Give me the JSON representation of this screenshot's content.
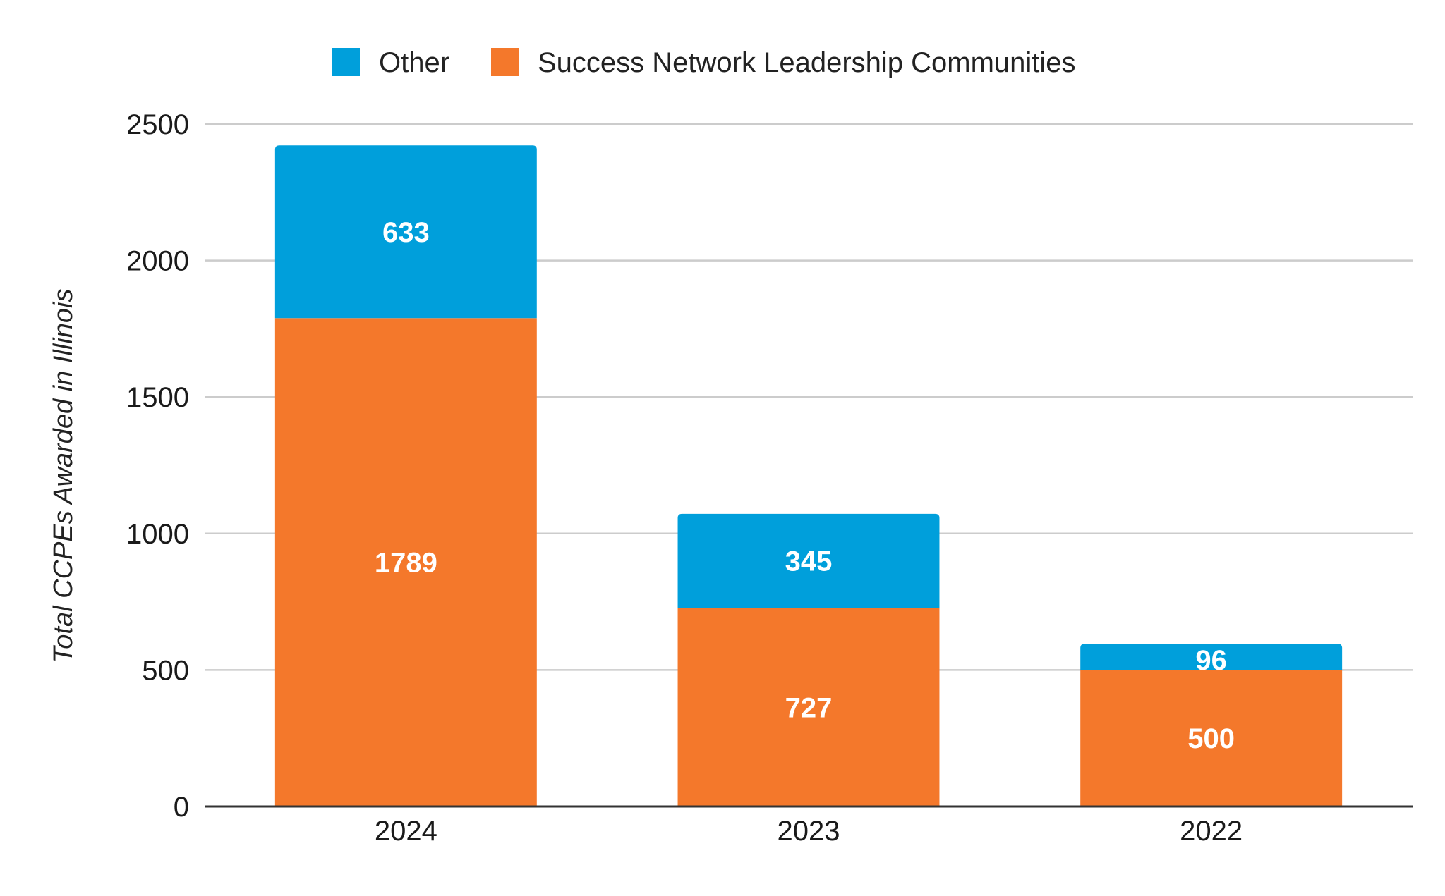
{
  "chart_data": {
    "type": "bar",
    "stacked": true,
    "categories": [
      "2024",
      "2023",
      "2022"
    ],
    "series": [
      {
        "name": "Success Network Leadership Communities",
        "values": [
          1789,
          727,
          500
        ],
        "color": "#f4782b"
      },
      {
        "name": "Other",
        "values": [
          633,
          345,
          96
        ],
        "color": "#009fdb"
      }
    ],
    "legend": {
      "placement": "top-center",
      "order": [
        "Other",
        "Success Network Leadership Communities"
      ]
    },
    "title": "",
    "xlabel": "",
    "ylabel": "Total CCPEs Awarded in Illinois",
    "ylim": [
      0,
      2500
    ],
    "yticks": [
      0,
      500,
      1000,
      1500,
      2000,
      2500
    ],
    "grid": true,
    "data_labels": true,
    "colors": {
      "grid": "#cccccc",
      "axis": "#333333",
      "label_text": "#ffffff"
    }
  }
}
